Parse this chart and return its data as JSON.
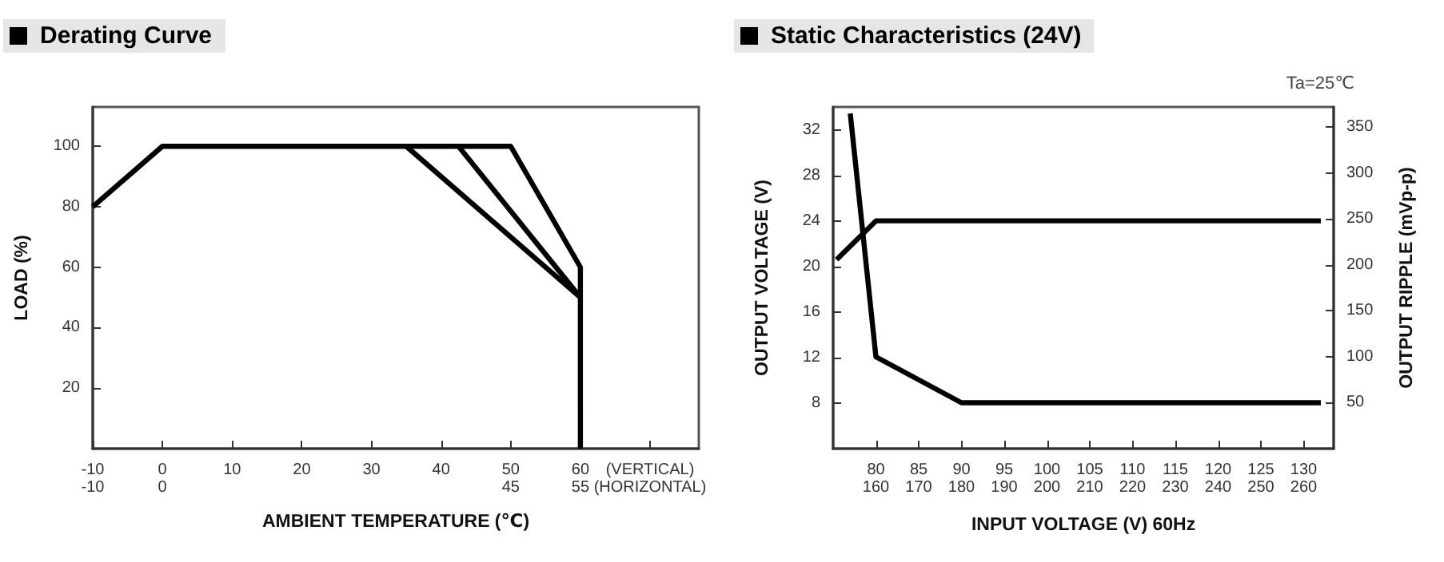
{
  "chart_data": [
    {
      "type": "line",
      "title": "Derating Curve",
      "xlabel": "AMBIENT TEMPERATURE (℃)",
      "ylabel": "LOAD (%)",
      "xlim": [
        -10,
        77
      ],
      "xticks": [
        {
          "value": -10,
          "label": "-10\n-10"
        },
        {
          "value": 0,
          "label": "0\n0"
        },
        10,
        20,
        30,
        40,
        {
          "value": 50,
          "label": "50\n45"
        },
        {
          "value": 60,
          "label": "60\n55"
        },
        {
          "value": 70,
          "label": "(VERTICAL)\n(HORIZONTAL)"
        }
      ],
      "ylim": [
        0,
        113
      ],
      "yticks": [
        20,
        40,
        60,
        80,
        100
      ],
      "series": [
        {
          "color": "#000000",
          "x": [
            -10,
            0,
            50,
            60,
            60
          ],
          "values": [
            80,
            100,
            100,
            60,
            0
          ]
        },
        {
          "color": "#000000",
          "x": [
            42.5,
            60
          ],
          "values": [
            100,
            50
          ]
        },
        {
          "color": "#000000",
          "x": [
            35,
            60
          ],
          "values": [
            100,
            50
          ]
        }
      ],
      "grid": false,
      "marker": "none",
      "line_style": "solid"
    },
    {
      "type": "line",
      "title": "Static Characteristics (24V)",
      "xlabel": "INPUT VOLTAGE (V) 60Hz",
      "ylabel": "OUTPUT VOLTAGE (V)",
      "y2label": "OUTPUT RIPPLE (mVp-p)",
      "annotations": [
        "Ta=25℃"
      ],
      "xlim": [
        75,
        133.5
      ],
      "xticks": [
        80,
        85,
        90,
        95,
        100,
        105,
        110,
        115,
        120,
        125,
        130
      ],
      "x2lim": [
        150,
        267
      ],
      "x2ticks": [
        160,
        170,
        180,
        190,
        200,
        210,
        220,
        230,
        240,
        250,
        260
      ],
      "ylim": [
        4,
        34
      ],
      "yticks": [
        8,
        12,
        16,
        20,
        24,
        28,
        32
      ],
      "y2lim": [
        0,
        372
      ],
      "y2ticks": [
        50,
        100,
        150,
        200,
        250,
        300,
        350
      ],
      "series": [
        {
          "color": "#000000",
          "x": [
            75.4,
            80,
            132
          ],
          "values": [
            20.6,
            24,
            24
          ]
        },
        {
          "color": "#000000",
          "axis": "y2",
          "x": [
            77,
            80,
            90,
            132
          ],
          "values": [
            365,
            100,
            50,
            50
          ]
        }
      ],
      "grid": false,
      "marker": "none",
      "line_style": "solid"
    }
  ]
}
